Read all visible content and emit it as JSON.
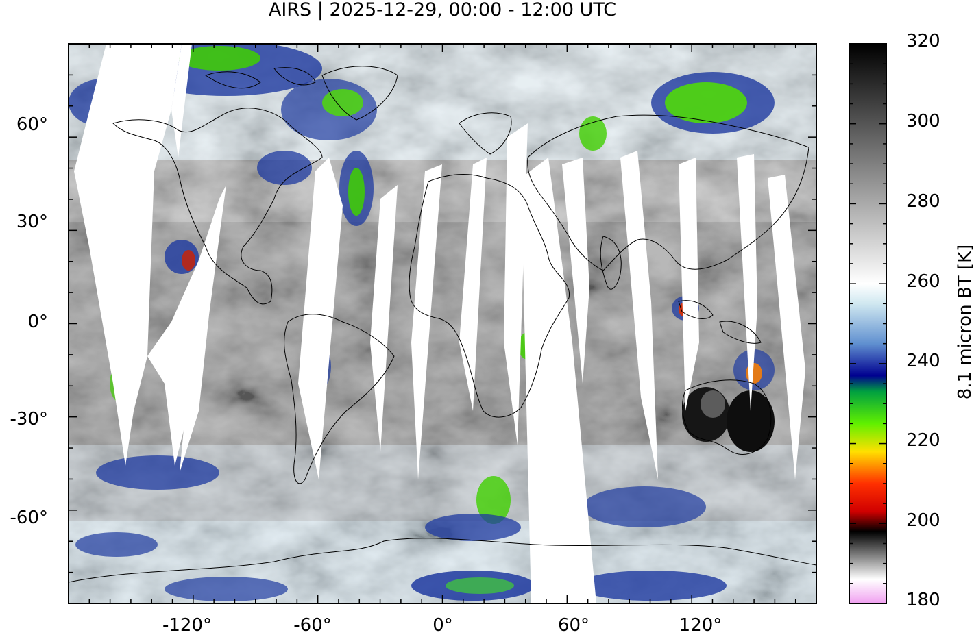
{
  "title": "AIRS | 2025-12-29, 00:00 - 12:00 UTC",
  "map": {
    "projection": "equirectangular",
    "lon_range": [
      -180,
      180
    ],
    "lat_range": [
      -90,
      90
    ],
    "lat_ticks": [
      "60°",
      "30°",
      "0°",
      "-30°",
      "-60°"
    ],
    "lat_tick_values": [
      60,
      30,
      0,
      -30,
      -60
    ],
    "lon_ticks": [
      "-120°",
      "-60°",
      "0°",
      "60°",
      "120°"
    ],
    "lon_tick_values": [
      -120,
      -60,
      0,
      60,
      120
    ],
    "no_data_color": "#ffffff",
    "coastline_color": "#000000"
  },
  "colorbar": {
    "title": "8.1 micron BT [K]",
    "range": [
      180,
      320
    ],
    "tick_labels": [
      "320",
      "300",
      "280",
      "260",
      "240",
      "220",
      "200",
      "180"
    ],
    "tick_values": [
      320,
      300,
      280,
      260,
      240,
      220,
      200,
      180
    ],
    "stops": [
      {
        "value": 180,
        "color": "#f0a0f0"
      },
      {
        "value": 186,
        "color": "#ffffff"
      },
      {
        "value": 198,
        "color": "#000000"
      },
      {
        "value": 203,
        "color": "#d00000"
      },
      {
        "value": 210,
        "color": "#ff3000"
      },
      {
        "value": 218,
        "color": "#ffe000"
      },
      {
        "value": 225,
        "color": "#60f000"
      },
      {
        "value": 233,
        "color": "#00a040"
      },
      {
        "value": 237,
        "color": "#000090"
      },
      {
        "value": 245,
        "color": "#6090d0"
      },
      {
        "value": 255,
        "color": "#d0e8f0"
      },
      {
        "value": 260,
        "color": "#ffffff"
      },
      {
        "value": 320,
        "color": "#000000"
      }
    ]
  }
}
